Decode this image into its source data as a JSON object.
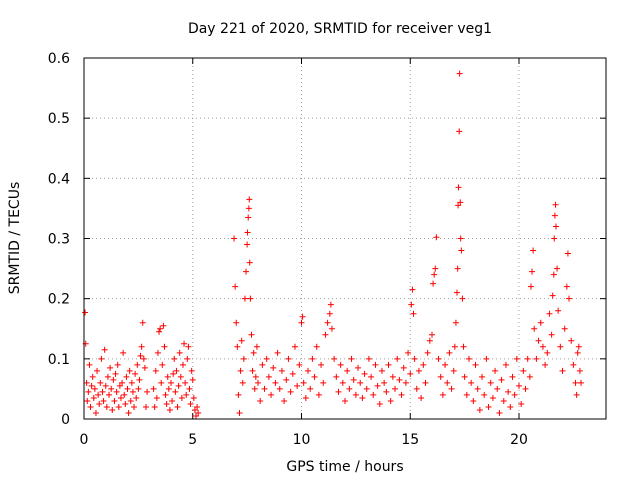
{
  "chart_data": {
    "type": "scatter",
    "title": "Day 221 of 2020, SRMTID for receiver veg1",
    "xlabel": "GPS time / hours",
    "ylabel": "SRMTID / TECUs",
    "xlim": [
      0,
      24
    ],
    "ylim": [
      0,
      0.6
    ],
    "xticks": [
      0,
      5,
      10,
      15,
      20
    ],
    "xtick_labels": [
      "0",
      "5",
      "10",
      "15",
      "20"
    ],
    "yticks": [
      0,
      0.1,
      0.2,
      0.3,
      0.4,
      0.5,
      0.6
    ],
    "ytick_labels": [
      "0",
      "0.1",
      "0.2",
      "0.3",
      "0.4",
      "0.5",
      "0.6"
    ],
    "grid": true,
    "marker": "+",
    "color": "#ff0000",
    "series": [
      {
        "name": "veg1",
        "points": [
          [
            0.05,
            0.177
          ],
          [
            0.08,
            0.125
          ],
          [
            0.12,
            0.06
          ],
          [
            0.15,
            0.03
          ],
          [
            0.2,
            0.045
          ],
          [
            0.25,
            0.09
          ],
          [
            0.3,
            0.02
          ],
          [
            0.35,
            0.055
          ],
          [
            0.4,
            0.07
          ],
          [
            0.45,
            0.035
          ],
          [
            0.5,
            0.05
          ],
          [
            0.55,
            0.01
          ],
          [
            0.6,
            0.08
          ],
          [
            0.65,
            0.04
          ],
          [
            0.7,
            0.025
          ],
          [
            0.75,
            0.06
          ],
          [
            0.8,
            0.1
          ],
          [
            0.85,
            0.045
          ],
          [
            0.9,
            0.03
          ],
          [
            0.95,
            0.115
          ],
          [
            1.0,
            0.055
          ],
          [
            1.05,
            0.02
          ],
          [
            1.1,
            0.07
          ],
          [
            1.15,
            0.04
          ],
          [
            1.2,
            0.085
          ],
          [
            1.25,
            0.05
          ],
          [
            1.3,
            0.015
          ],
          [
            1.35,
            0.065
          ],
          [
            1.4,
            0.03
          ],
          [
            1.45,
            0.075
          ],
          [
            1.5,
            0.045
          ],
          [
            1.55,
            0.09
          ],
          [
            1.6,
            0.02
          ],
          [
            1.65,
            0.055
          ],
          [
            1.7,
            0.035
          ],
          [
            1.75,
            0.06
          ],
          [
            1.8,
            0.11
          ],
          [
            1.85,
            0.04
          ],
          [
            1.9,
            0.025
          ],
          [
            1.95,
            0.07
          ],
          [
            2.0,
            0.05
          ],
          [
            2.05,
            0.01
          ],
          [
            2.1,
            0.08
          ],
          [
            2.15,
            0.03
          ],
          [
            2.2,
            0.06
          ],
          [
            2.25,
            0.045
          ],
          [
            2.3,
            0.02
          ],
          [
            2.35,
            0.075
          ],
          [
            2.4,
            0.035
          ],
          [
            2.45,
            0.09
          ],
          [
            2.5,
            0.05
          ],
          [
            2.55,
            0.065
          ],
          [
            2.6,
            0.105
          ],
          [
            2.65,
            0.12
          ],
          [
            2.7,
            0.16
          ],
          [
            2.75,
            0.1
          ],
          [
            2.8,
            0.085
          ],
          [
            2.85,
            0.02
          ],
          [
            2.9,
            0.045
          ],
          [
            3.2,
            0.05
          ],
          [
            3.25,
            0.02
          ],
          [
            3.3,
            0.08
          ],
          [
            3.35,
            0.035
          ],
          [
            3.4,
            0.11
          ],
          [
            3.45,
            0.145
          ],
          [
            3.5,
            0.15
          ],
          [
            3.55,
            0.06
          ],
          [
            3.6,
            0.09
          ],
          [
            3.65,
            0.155
          ],
          [
            3.7,
            0.12
          ],
          [
            3.75,
            0.04
          ],
          [
            3.8,
            0.025
          ],
          [
            3.85,
            0.07
          ],
          [
            3.9,
            0.05
          ],
          [
            3.95,
            0.015
          ],
          [
            4.0,
            0.06
          ],
          [
            4.05,
            0.03
          ],
          [
            4.1,
            0.075
          ],
          [
            4.15,
            0.1
          ],
          [
            4.2,
            0.045
          ],
          [
            4.25,
            0.08
          ],
          [
            4.3,
            0.02
          ],
          [
            4.35,
            0.055
          ],
          [
            4.4,
            0.11
          ],
          [
            4.45,
            0.07
          ],
          [
            4.5,
            0.035
          ],
          [
            4.55,
            0.09
          ],
          [
            4.6,
            0.125
          ],
          [
            4.65,
            0.06
          ],
          [
            4.7,
            0.04
          ],
          [
            4.75,
            0.1
          ],
          [
            4.8,
            0.12
          ],
          [
            4.85,
            0.05
          ],
          [
            4.9,
            0.025
          ],
          [
            4.95,
            0.08
          ],
          [
            5.0,
            0.065
          ],
          [
            5.05,
            0.035
          ],
          [
            5.1,
            0.015
          ],
          [
            5.15,
            0.005
          ],
          [
            5.2,
            0.02
          ],
          [
            5.25,
            0.01
          ],
          [
            6.9,
            0.3
          ],
          [
            6.95,
            0.22
          ],
          [
            7.0,
            0.16
          ],
          [
            7.05,
            0.12
          ],
          [
            7.1,
            0.04
          ],
          [
            7.15,
            0.01
          ],
          [
            7.2,
            0.08
          ],
          [
            7.25,
            0.13
          ],
          [
            7.3,
            0.06
          ],
          [
            7.35,
            0.1
          ],
          [
            7.4,
            0.2
          ],
          [
            7.45,
            0.245
          ],
          [
            7.5,
            0.29
          ],
          [
            7.52,
            0.31
          ],
          [
            7.55,
            0.335
          ],
          [
            7.58,
            0.35
          ],
          [
            7.6,
            0.365
          ],
          [
            7.62,
            0.26
          ],
          [
            7.65,
            0.2
          ],
          [
            7.7,
            0.14
          ],
          [
            7.75,
            0.08
          ],
          [
            7.8,
            0.11
          ],
          [
            7.85,
            0.05
          ],
          [
            7.9,
            0.07
          ],
          [
            7.95,
            0.12
          ],
          [
            8.0,
            0.06
          ],
          [
            8.1,
            0.03
          ],
          [
            8.2,
            0.09
          ],
          [
            8.3,
            0.05
          ],
          [
            8.4,
            0.1
          ],
          [
            8.5,
            0.07
          ],
          [
            8.6,
            0.04
          ],
          [
            8.7,
            0.085
          ],
          [
            8.8,
            0.06
          ],
          [
            8.9,
            0.11
          ],
          [
            9.0,
            0.05
          ],
          [
            9.1,
            0.08
          ],
          [
            9.2,
            0.03
          ],
          [
            9.3,
            0.065
          ],
          [
            9.4,
            0.1
          ],
          [
            9.5,
            0.045
          ],
          [
            9.6,
            0.075
          ],
          [
            9.7,
            0.12
          ],
          [
            9.8,
            0.055
          ],
          [
            9.9,
            0.09
          ],
          [
            10.0,
            0.16
          ],
          [
            10.05,
            0.17
          ],
          [
            10.1,
            0.06
          ],
          [
            10.2,
            0.035
          ],
          [
            10.3,
            0.08
          ],
          [
            10.4,
            0.05
          ],
          [
            10.5,
            0.1
          ],
          [
            10.6,
            0.07
          ],
          [
            10.7,
            0.12
          ],
          [
            10.8,
            0.04
          ],
          [
            10.9,
            0.09
          ],
          [
            11.0,
            0.06
          ],
          [
            11.1,
            0.14
          ],
          [
            11.2,
            0.16
          ],
          [
            11.3,
            0.175
          ],
          [
            11.35,
            0.19
          ],
          [
            11.4,
            0.15
          ],
          [
            11.5,
            0.1
          ],
          [
            11.6,
            0.07
          ],
          [
            11.7,
            0.045
          ],
          [
            11.8,
            0.09
          ],
          [
            11.9,
            0.06
          ],
          [
            12.0,
            0.03
          ],
          [
            12.1,
            0.08
          ],
          [
            12.2,
            0.05
          ],
          [
            12.3,
            0.1
          ],
          [
            12.4,
            0.065
          ],
          [
            12.5,
            0.04
          ],
          [
            12.6,
            0.085
          ],
          [
            12.7,
            0.06
          ],
          [
            12.8,
            0.035
          ],
          [
            12.9,
            0.075
          ],
          [
            13.0,
            0.05
          ],
          [
            13.1,
            0.1
          ],
          [
            13.2,
            0.07
          ],
          [
            13.3,
            0.04
          ],
          [
            13.4,
            0.09
          ],
          [
            13.5,
            0.055
          ],
          [
            13.6,
            0.025
          ],
          [
            13.7,
            0.08
          ],
          [
            13.8,
            0.06
          ],
          [
            13.9,
            0.045
          ],
          [
            14.0,
            0.09
          ],
          [
            14.1,
            0.03
          ],
          [
            14.2,
            0.07
          ],
          [
            14.3,
            0.05
          ],
          [
            14.4,
            0.1
          ],
          [
            14.5,
            0.065
          ],
          [
            14.6,
            0.04
          ],
          [
            14.7,
            0.085
          ],
          [
            14.8,
            0.06
          ],
          [
            14.9,
            0.11
          ],
          [
            15.0,
            0.075
          ],
          [
            15.05,
            0.19
          ],
          [
            15.1,
            0.215
          ],
          [
            15.15,
            0.175
          ],
          [
            15.2,
            0.1
          ],
          [
            15.3,
            0.05
          ],
          [
            15.4,
            0.08
          ],
          [
            15.5,
            0.035
          ],
          [
            15.6,
            0.09
          ],
          [
            15.7,
            0.06
          ],
          [
            15.8,
            0.11
          ],
          [
            15.9,
            0.13
          ],
          [
            16.0,
            0.14
          ],
          [
            16.05,
            0.225
          ],
          [
            16.1,
            0.24
          ],
          [
            16.15,
            0.25
          ],
          [
            16.2,
            0.302
          ],
          [
            16.3,
            0.1
          ],
          [
            16.4,
            0.07
          ],
          [
            16.5,
            0.04
          ],
          [
            16.6,
            0.09
          ],
          [
            16.7,
            0.06
          ],
          [
            16.8,
            0.11
          ],
          [
            16.9,
            0.05
          ],
          [
            17.0,
            0.08
          ],
          [
            17.05,
            0.12
          ],
          [
            17.1,
            0.16
          ],
          [
            17.15,
            0.21
          ],
          [
            17.18,
            0.25
          ],
          [
            17.2,
            0.355
          ],
          [
            17.22,
            0.385
          ],
          [
            17.25,
            0.478
          ],
          [
            17.27,
            0.574
          ],
          [
            17.3,
            0.36
          ],
          [
            17.32,
            0.3
          ],
          [
            17.35,
            0.28
          ],
          [
            17.4,
            0.2
          ],
          [
            17.45,
            0.12
          ],
          [
            17.5,
            0.07
          ],
          [
            17.6,
            0.04
          ],
          [
            17.7,
            0.1
          ],
          [
            17.8,
            0.06
          ],
          [
            17.9,
            0.03
          ],
          [
            18.0,
            0.09
          ],
          [
            18.1,
            0.05
          ],
          [
            18.2,
            0.015
          ],
          [
            18.3,
            0.07
          ],
          [
            18.4,
            0.04
          ],
          [
            18.5,
            0.1
          ],
          [
            18.6,
            0.02
          ],
          [
            18.7,
            0.06
          ],
          [
            18.8,
            0.035
          ],
          [
            18.9,
            0.08
          ],
          [
            19.0,
            0.05
          ],
          [
            19.1,
            0.01
          ],
          [
            19.2,
            0.065
          ],
          [
            19.3,
            0.03
          ],
          [
            19.4,
            0.09
          ],
          [
            19.5,
            0.045
          ],
          [
            19.6,
            0.02
          ],
          [
            19.7,
            0.07
          ],
          [
            19.8,
            0.04
          ],
          [
            19.9,
            0.1
          ],
          [
            20.0,
            0.055
          ],
          [
            20.1,
            0.025
          ],
          [
            20.2,
            0.08
          ],
          [
            20.3,
            0.05
          ],
          [
            20.4,
            0.1
          ],
          [
            20.5,
            0.07
          ],
          [
            20.55,
            0.22
          ],
          [
            20.6,
            0.245
          ],
          [
            20.65,
            0.28
          ],
          [
            20.7,
            0.15
          ],
          [
            20.8,
            0.1
          ],
          [
            20.9,
            0.13
          ],
          [
            21.0,
            0.16
          ],
          [
            21.1,
            0.12
          ],
          [
            21.2,
            0.09
          ],
          [
            21.3,
            0.11
          ],
          [
            21.4,
            0.175
          ],
          [
            21.5,
            0.14
          ],
          [
            21.55,
            0.205
          ],
          [
            21.6,
            0.24
          ],
          [
            21.62,
            0.3
          ],
          [
            21.65,
            0.338
          ],
          [
            21.68,
            0.356
          ],
          [
            21.7,
            0.32
          ],
          [
            21.75,
            0.25
          ],
          [
            21.8,
            0.18
          ],
          [
            21.9,
            0.12
          ],
          [
            22.0,
            0.08
          ],
          [
            22.1,
            0.15
          ],
          [
            22.2,
            0.22
          ],
          [
            22.25,
            0.275
          ],
          [
            22.3,
            0.2
          ],
          [
            22.4,
            0.13
          ],
          [
            22.5,
            0.09
          ],
          [
            22.6,
            0.06
          ],
          [
            22.65,
            0.04
          ],
          [
            22.7,
            0.11
          ],
          [
            22.75,
            0.12
          ],
          [
            22.8,
            0.08
          ],
          [
            22.85,
            0.06
          ]
        ]
      }
    ]
  }
}
